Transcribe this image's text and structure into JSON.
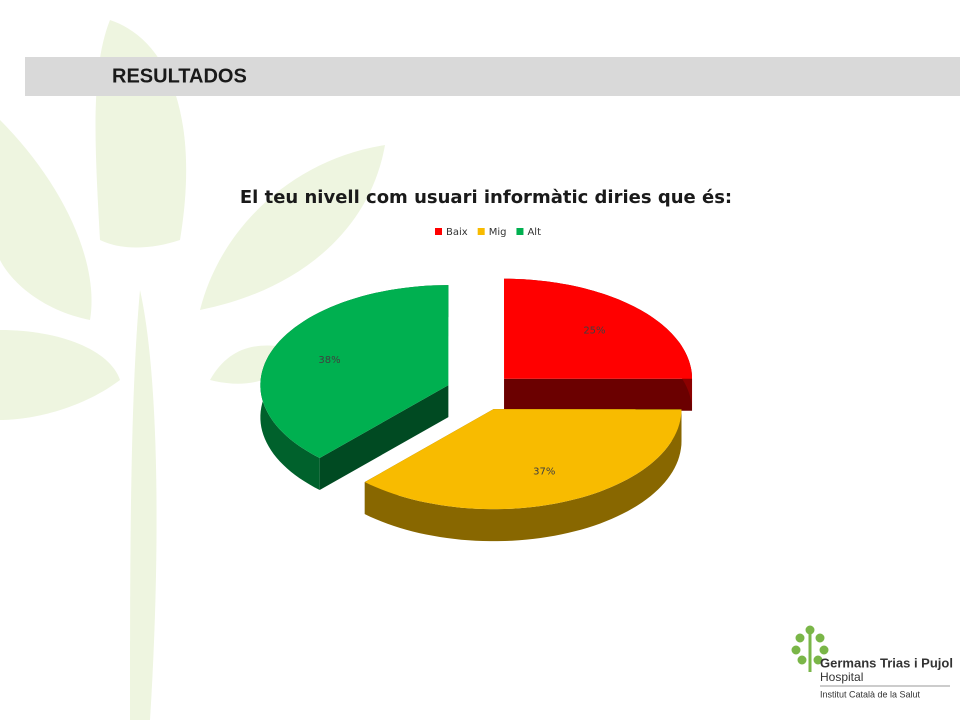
{
  "header": {
    "title": "RESULTADOS"
  },
  "chart_data": {
    "type": "pie",
    "title": "El teu nivell com usuari informàtic diries que és:",
    "categories": [
      "Baix",
      "Mig",
      "Alt"
    ],
    "values": [
      25,
      37,
      38
    ],
    "value_labels": [
      "25%",
      "37%",
      "38%"
    ],
    "colors": [
      "#ff0000",
      "#f8bb00",
      "#00b050"
    ],
    "legend": "top"
  },
  "logo": {
    "name": "Germans Trias i Pujol",
    "subtitle": "Hospital",
    "institution": "Institut Català de la Salut"
  }
}
